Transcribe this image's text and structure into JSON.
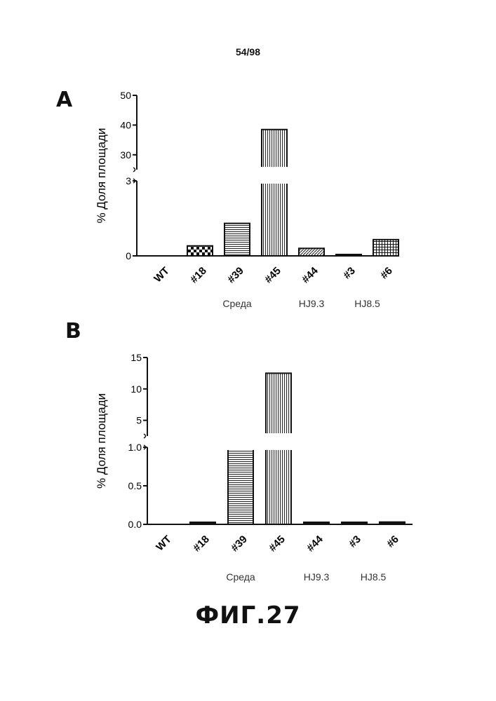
{
  "header": {
    "page_number": "54/98"
  },
  "figure": {
    "caption": "ФИГ.27"
  },
  "chart_data": [
    {
      "panel": "A",
      "type": "bar",
      "ylabel": "% Доля площади",
      "axis_break": true,
      "lower_ylim": [
        0,
        3
      ],
      "upper_ylim": [
        25,
        50
      ],
      "yticks_lower": [
        "0",
        "3"
      ],
      "yticks_upper": [
        "30",
        "40",
        "50"
      ],
      "categories": [
        "WT",
        "#18",
        "#39",
        "#45",
        "#44",
        "#3",
        "#6"
      ],
      "values": [
        0,
        0.4,
        1.3,
        38.5,
        0.3,
        0.05,
        0.65
      ],
      "patterns": [
        "none",
        "checker",
        "hlines",
        "vlines",
        "diag",
        "none",
        "grid"
      ],
      "group_labels": [
        {
          "text": "Среда",
          "categories": [
            "#18",
            "#39",
            "#45"
          ]
        },
        {
          "text": "HJ9.3",
          "categories": [
            "#44"
          ]
        },
        {
          "text": "HJ8.5",
          "categories": [
            "#3",
            "#6"
          ]
        }
      ]
    },
    {
      "panel": "B",
      "type": "bar",
      "ylabel": "% Доля площади",
      "axis_break": true,
      "lower_ylim": [
        0,
        1.0
      ],
      "upper_ylim": [
        2.5,
        15
      ],
      "yticks_lower": [
        "0.0",
        "0.5",
        "1.0"
      ],
      "yticks_upper": [
        "5",
        "10",
        "15"
      ],
      "categories": [
        "WT",
        "#18",
        "#39",
        "#45",
        "#44",
        "#3",
        "#6"
      ],
      "values": [
        0,
        0.02,
        2.5,
        12.5,
        0.02,
        0.01,
        0.03
      ],
      "patterns": [
        "none",
        "solid",
        "hlines",
        "vlines",
        "solid",
        "solid",
        "solid"
      ],
      "group_labels": [
        {
          "text": "Среда",
          "categories": [
            "#18",
            "#39",
            "#45"
          ]
        },
        {
          "text": "HJ9.3",
          "categories": [
            "#44"
          ]
        },
        {
          "text": "HJ8.5",
          "categories": [
            "#3",
            "#6"
          ]
        }
      ]
    }
  ]
}
